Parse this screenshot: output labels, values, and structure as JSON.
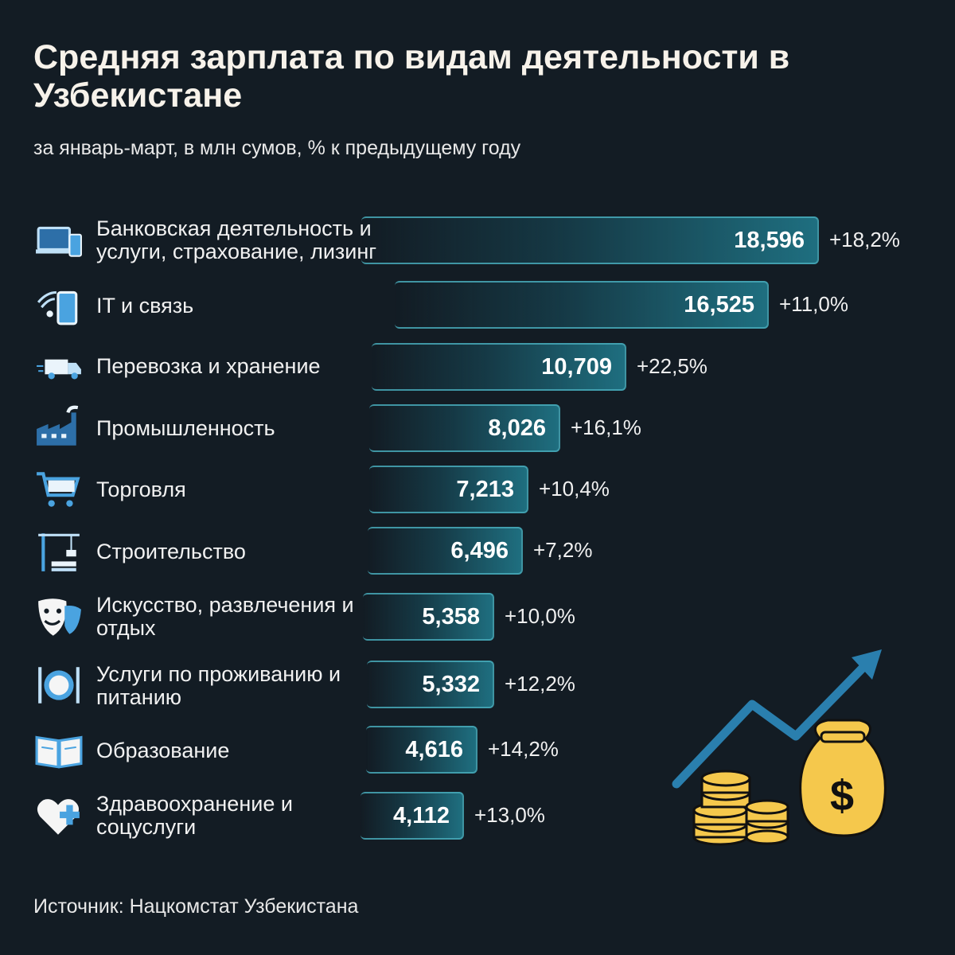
{
  "header": {
    "title": "Средняя зарплата по видам деятельности в Узбекистане",
    "subtitle": "за январь-март, в млн сумов, % к предыдущему году"
  },
  "footer": {
    "source": "Источник: Нацкомстат Узбекистана"
  },
  "colors": {
    "background": "#131c24",
    "bar_accent": "#1f6f80",
    "icon_blue": "#4aa3e0",
    "coin_yellow": "#f5c84c",
    "arrow_blue": "#2a7fae"
  },
  "chart_data": {
    "type": "bar",
    "orientation": "horizontal",
    "title": "Средняя зарплата по видам деятельности в Узбекистане",
    "subtitle": "за январь-март, в млн сумов, % к предыдущему году",
    "categories": [
      "Банковская деятельность и услуги, страхование, лизинг",
      "IT и связь",
      "Перевозка и хранение",
      "Промышленность",
      "Торговля",
      "Строительство",
      "Искусство, развлечения и отдых",
      "Услуги по проживанию и питанию",
      "Образование",
      "Здравоохранение и соцуслуги"
    ],
    "values": [
      18.596,
      16.525,
      10.709,
      8.026,
      7.213,
      6.496,
      5.358,
      5.332,
      4.616,
      4.112
    ],
    "value_labels": [
      "18,596",
      "16,525",
      "10,709",
      "8,026",
      "7,213",
      "6,496",
      "5,358",
      "5,332",
      "4,616",
      "4,112"
    ],
    "change_labels": [
      "+18,2%",
      "+11,0%",
      "+22,5%",
      "+16,1%",
      "+10,4%",
      "+7,2%",
      "+10,0%",
      "+12,2%",
      "+14,2%",
      "+13,0%"
    ],
    "icons": [
      "laptop-phone-icon",
      "wifi-phone-icon",
      "truck-icon",
      "factory-icon",
      "cart-icon",
      "crane-icon",
      "theater-masks-icon",
      "plate-cutlery-icon",
      "open-book-icon",
      "heart-cross-icon"
    ],
    "xlabel": "",
    "ylabel": "",
    "grid": false,
    "legend": "none"
  }
}
